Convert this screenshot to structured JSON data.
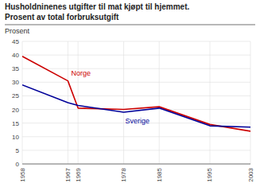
{
  "chart_data": {
    "type": "line",
    "title": "Husholdninenes utgifter til mat kjøpt til hjemmet.",
    "subtitle": "Prosent av total forbruksutgift",
    "y_label": "Prosent",
    "x": [
      1958,
      1967,
      1969,
      1978,
      1985,
      1995,
      2003
    ],
    "series": [
      {
        "name": "Norge",
        "color": "#cc0000",
        "values": [
          39.5,
          30.5,
          20.5,
          20.0,
          21.0,
          14.5,
          12.0
        ]
      },
      {
        "name": "Sverige",
        "color": "#000099",
        "values": [
          29.0,
          22.5,
          21.5,
          19.0,
          20.5,
          14.0,
          13.5
        ]
      }
    ],
    "xlim": [
      1958,
      2003
    ],
    "xticks": [
      1958,
      1967,
      1969,
      1978,
      1985,
      1995,
      2003
    ],
    "ylim": [
      0,
      45
    ],
    "yticks": [
      0,
      5,
      10,
      15,
      20,
      25,
      30,
      35,
      40,
      45
    ],
    "grid": true
  }
}
